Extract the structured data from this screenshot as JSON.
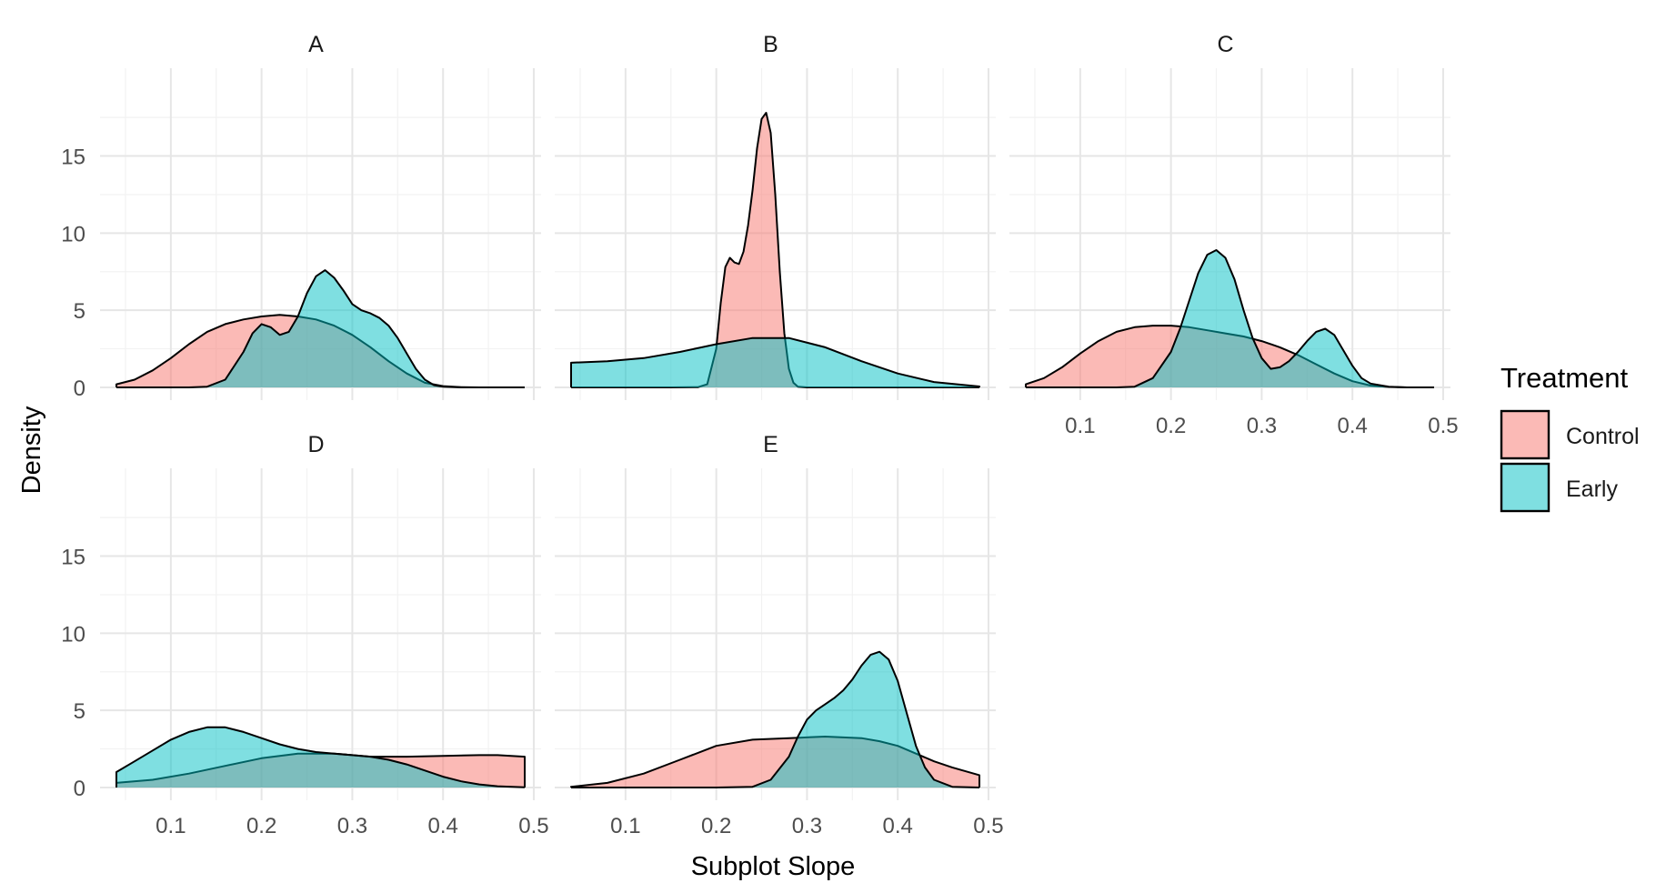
{
  "chart_data": {
    "type": "area",
    "xlabel": "Subplot Slope",
    "ylabel": "Density",
    "xlim": [
      0.04,
      0.49
    ],
    "ylim": [
      0,
      17.8
    ],
    "x_ticks": [
      "0.1",
      "0.2",
      "0.3",
      "0.4",
      "0.5"
    ],
    "y_ticks": [
      "0",
      "5",
      "10",
      "15"
    ],
    "grid": true,
    "legend": {
      "title": "Treatment",
      "placement": "right",
      "entries": [
        {
          "name": "Control",
          "color": "#F8766D"
        },
        {
          "name": "Early",
          "color": "#00BFC4"
        }
      ]
    },
    "panels": [
      {
        "label": "A",
        "series": [
          {
            "name": "Control",
            "x": [
              0.04,
              0.06,
              0.08,
              0.1,
              0.12,
              0.14,
              0.16,
              0.18,
              0.2,
              0.22,
              0.24,
              0.26,
              0.28,
              0.3,
              0.32,
              0.34,
              0.36,
              0.38,
              0.4,
              0.42,
              0.44,
              0.46,
              0.49
            ],
            "y": [
              0.2,
              0.5,
              1.1,
              1.9,
              2.8,
              3.6,
              4.1,
              4.4,
              4.6,
              4.7,
              4.6,
              4.4,
              4.0,
              3.4,
              2.6,
              1.7,
              0.9,
              0.3,
              0.08,
              0.02,
              0,
              0,
              0
            ]
          },
          {
            "name": "Early",
            "x": [
              0.04,
              0.06,
              0.08,
              0.1,
              0.12,
              0.14,
              0.16,
              0.18,
              0.19,
              0.2,
              0.21,
              0.22,
              0.23,
              0.24,
              0.25,
              0.26,
              0.27,
              0.28,
              0.29,
              0.3,
              0.31,
              0.32,
              0.33,
              0.34,
              0.35,
              0.36,
              0.37,
              0.38,
              0.39,
              0.4,
              0.42,
              0.44,
              0.46,
              0.49
            ],
            "y": [
              0,
              0,
              0,
              0,
              0,
              0.05,
              0.5,
              2.3,
              3.5,
              4.1,
              3.9,
              3.4,
              3.6,
              4.6,
              6.1,
              7.2,
              7.6,
              7.1,
              6.3,
              5.4,
              5.0,
              4.8,
              4.5,
              4.0,
              3.2,
              2.2,
              1.2,
              0.5,
              0.15,
              0.04,
              0,
              0,
              0,
              0
            ]
          }
        ]
      },
      {
        "label": "B",
        "series": [
          {
            "name": "Control",
            "x": [
              0.04,
              0.1,
              0.15,
              0.18,
              0.19,
              0.2,
              0.205,
              0.21,
              0.215,
              0.22,
              0.225,
              0.23,
              0.235,
              0.24,
              0.245,
              0.25,
              0.255,
              0.26,
              0.265,
              0.27,
              0.275,
              0.28,
              0.285,
              0.29,
              0.3,
              0.35,
              0.49
            ],
            "y": [
              0,
              0,
              0,
              0.02,
              0.2,
              2.5,
              5.5,
              7.8,
              8.4,
              8.1,
              8.0,
              8.8,
              10.5,
              12.8,
              15.5,
              17.4,
              17.8,
              16.5,
              12.5,
              7.5,
              3.5,
              1.2,
              0.3,
              0.05,
              0,
              0,
              0
            ]
          },
          {
            "name": "Early",
            "x": [
              0.04,
              0.08,
              0.12,
              0.16,
              0.2,
              0.24,
              0.28,
              0.32,
              0.36,
              0.4,
              0.44,
              0.49
            ],
            "y": [
              1.6,
              1.7,
              1.9,
              2.3,
              2.8,
              3.2,
              3.2,
              2.6,
              1.7,
              0.9,
              0.35,
              0.06
            ]
          }
        ]
      },
      {
        "label": "C",
        "series": [
          {
            "name": "Control",
            "x": [
              0.04,
              0.06,
              0.08,
              0.1,
              0.12,
              0.14,
              0.16,
              0.18,
              0.2,
              0.22,
              0.24,
              0.26,
              0.28,
              0.3,
              0.32,
              0.34,
              0.36,
              0.38,
              0.4,
              0.42,
              0.44,
              0.46,
              0.49
            ],
            "y": [
              0.2,
              0.6,
              1.3,
              2.2,
              3.0,
              3.6,
              3.9,
              4.0,
              4.0,
              3.9,
              3.7,
              3.5,
              3.3,
              3.0,
              2.6,
              2.1,
              1.5,
              0.9,
              0.4,
              0.12,
              0.03,
              0,
              0
            ]
          },
          {
            "name": "Early",
            "x": [
              0.04,
              0.1,
              0.14,
              0.16,
              0.18,
              0.2,
              0.21,
              0.22,
              0.23,
              0.24,
              0.25,
              0.26,
              0.27,
              0.28,
              0.29,
              0.3,
              0.31,
              0.32,
              0.33,
              0.34,
              0.35,
              0.36,
              0.37,
              0.38,
              0.39,
              0.4,
              0.41,
              0.42,
              0.44,
              0.46,
              0.49
            ],
            "y": [
              0,
              0,
              0,
              0.05,
              0.6,
              2.3,
              3.8,
              5.6,
              7.4,
              8.6,
              8.9,
              8.4,
              7.0,
              5.0,
              3.2,
              1.9,
              1.2,
              1.3,
              1.7,
              2.3,
              3.0,
              3.6,
              3.8,
              3.4,
              2.4,
              1.4,
              0.6,
              0.25,
              0.05,
              0,
              0
            ]
          }
        ]
      },
      {
        "label": "D",
        "series": [
          {
            "name": "Control",
            "x": [
              0.04,
              0.08,
              0.12,
              0.16,
              0.2,
              0.24,
              0.28,
              0.32,
              0.36,
              0.4,
              0.44,
              0.46,
              0.49
            ],
            "y": [
              0.3,
              0.5,
              0.9,
              1.4,
              1.9,
              2.2,
              2.2,
              2.0,
              2.0,
              2.05,
              2.1,
              2.1,
              2.0
            ]
          },
          {
            "name": "Early",
            "x": [
              0.04,
              0.06,
              0.08,
              0.1,
              0.12,
              0.14,
              0.16,
              0.18,
              0.2,
              0.22,
              0.24,
              0.26,
              0.28,
              0.3,
              0.32,
              0.34,
              0.36,
              0.38,
              0.4,
              0.42,
              0.44,
              0.46,
              0.49
            ],
            "y": [
              1.0,
              1.7,
              2.4,
              3.1,
              3.6,
              3.9,
              3.9,
              3.6,
              3.2,
              2.8,
              2.5,
              2.3,
              2.2,
              2.1,
              2.0,
              1.8,
              1.5,
              1.1,
              0.7,
              0.4,
              0.2,
              0.08,
              0.02
            ]
          }
        ]
      },
      {
        "label": "E",
        "series": [
          {
            "name": "Control",
            "x": [
              0.04,
              0.08,
              0.12,
              0.16,
              0.2,
              0.24,
              0.28,
              0.32,
              0.36,
              0.38,
              0.4,
              0.42,
              0.44,
              0.46,
              0.49
            ],
            "y": [
              0.05,
              0.3,
              0.9,
              1.8,
              2.7,
              3.1,
              3.2,
              3.3,
              3.2,
              3.0,
              2.7,
              2.2,
              1.7,
              1.3,
              0.8
            ]
          },
          {
            "name": "Early",
            "x": [
              0.04,
              0.2,
              0.24,
              0.26,
              0.28,
              0.29,
              0.3,
              0.31,
              0.32,
              0.33,
              0.34,
              0.35,
              0.36,
              0.37,
              0.38,
              0.39,
              0.4,
              0.41,
              0.42,
              0.43,
              0.44,
              0.46,
              0.49
            ],
            "y": [
              0,
              0,
              0.05,
              0.5,
              2.0,
              3.3,
              4.4,
              5.0,
              5.4,
              5.8,
              6.3,
              7.0,
              7.9,
              8.6,
              8.8,
              8.3,
              6.9,
              4.8,
              2.7,
              1.3,
              0.5,
              0.05,
              0
            ]
          }
        ]
      }
    ]
  }
}
